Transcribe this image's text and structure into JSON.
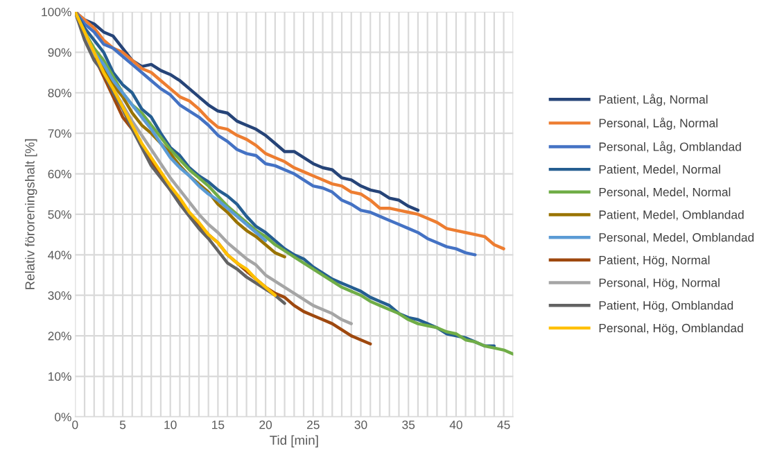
{
  "chart_data": {
    "type": "line",
    "xlabel": "Tid [min]",
    "ylabel": "Relativ föroreningshalt [%]",
    "x": [
      0,
      1,
      2,
      3,
      4,
      5,
      6,
      7,
      8,
      9,
      10,
      11,
      12,
      13,
      14,
      15,
      16,
      17,
      18,
      19,
      20,
      21,
      22,
      23,
      24,
      25,
      26,
      27,
      28,
      29,
      30,
      31,
      32,
      33,
      34,
      35,
      36,
      37,
      38,
      39,
      40,
      41,
      42,
      43,
      44,
      45,
      46
    ],
    "xlim": [
      0,
      46
    ],
    "xticks": [
      0,
      {
        "value": 1,
        "label": null
      },
      {
        "value": 2,
        "label": null
      },
      {
        "value": 3,
        "label": null
      },
      {
        "value": 4,
        "label": null
      },
      5,
      {
        "value": 6,
        "label": null
      },
      {
        "value": 7,
        "label": null
      },
      {
        "value": 8,
        "label": null
      },
      {
        "value": 9,
        "label": null
      },
      10,
      {
        "value": 11,
        "label": null
      },
      {
        "value": 12,
        "label": null
      },
      {
        "value": 13,
        "label": null
      },
      {
        "value": 14,
        "label": null
      },
      15,
      {
        "value": 16,
        "label": null
      },
      {
        "value": 17,
        "label": null
      },
      {
        "value": 18,
        "label": null
      },
      {
        "value": 19,
        "label": null
      },
      20,
      {
        "value": 21,
        "label": null
      },
      {
        "value": 22,
        "label": null
      },
      {
        "value": 23,
        "label": null
      },
      {
        "value": 24,
        "label": null
      },
      25,
      {
        "value": 26,
        "label": null
      },
      {
        "value": 27,
        "label": null
      },
      {
        "value": 28,
        "label": null
      },
      {
        "value": 29,
        "label": null
      },
      30,
      {
        "value": 31,
        "label": null
      },
      {
        "value": 32,
        "label": null
      },
      {
        "value": 33,
        "label": null
      },
      {
        "value": 34,
        "label": null
      },
      35,
      {
        "value": 36,
        "label": null
      },
      {
        "value": 37,
        "label": null
      },
      {
        "value": 38,
        "label": null
      },
      {
        "value": 39,
        "label": null
      },
      40,
      {
        "value": 41,
        "label": null
      },
      {
        "value": 42,
        "label": null
      },
      {
        "value": 43,
        "label": null
      },
      {
        "value": 44,
        "label": null
      },
      45,
      {
        "value": 46,
        "label": null
      }
    ],
    "ylim": [
      0,
      100
    ],
    "yticks": [
      {
        "value": 0,
        "label": "0%"
      },
      {
        "value": 10,
        "label": "10%"
      },
      {
        "value": 20,
        "label": "20%"
      },
      {
        "value": 30,
        "label": "30%"
      },
      {
        "value": 40,
        "label": "40%"
      },
      {
        "value": 50,
        "label": "50%"
      },
      {
        "value": 60,
        "label": "60%"
      },
      {
        "value": 70,
        "label": "70%"
      },
      {
        "value": 80,
        "label": "80%"
      },
      {
        "value": 90,
        "label": "90%"
      },
      {
        "value": 100,
        "label": "100%"
      }
    ],
    "grid": true,
    "legend": "right",
    "marker": "none",
    "line_style": "solid",
    "series": [
      {
        "name": "Patient, Låg, Normal",
        "color": "#264478",
        "values": [
          100,
          98,
          97,
          95,
          94,
          91,
          88,
          86.5,
          87,
          85.5,
          84.5,
          83,
          81,
          79,
          77,
          75.5,
          75,
          73,
          72,
          71,
          69.5,
          67.5,
          65.5,
          65.5,
          64,
          62.5,
          61.5,
          61,
          59,
          58.5,
          57,
          56,
          55.5,
          54,
          53.5,
          52,
          51,
          null,
          null,
          null,
          null,
          null,
          null,
          null,
          null,
          null,
          null
        ]
      },
      {
        "name": "Personal, Låg, Normal",
        "color": "#ed7d31",
        "values": [
          100,
          98,
          96,
          93,
          91,
          90,
          88,
          86,
          85,
          83,
          81,
          79,
          78,
          76,
          73.5,
          71.5,
          71,
          69.5,
          68.5,
          67,
          65,
          64,
          63,
          61.5,
          60.5,
          59.5,
          58.5,
          57.5,
          57,
          55.5,
          55,
          53.5,
          51.5,
          51.5,
          51,
          50.5,
          50,
          49,
          48,
          46.5,
          46,
          45.5,
          45,
          44.5,
          42.5,
          41.5,
          null
        ]
      },
      {
        "name": "Personal, Låg, Omblandad",
        "color": "#4472c4",
        "values": [
          100,
          97,
          95,
          92,
          91,
          89,
          87,
          85,
          83,
          81,
          79.5,
          77,
          75.5,
          74,
          72,
          69.5,
          68,
          66,
          65,
          64.5,
          62.5,
          62,
          61,
          60,
          58.5,
          57,
          56.5,
          55.5,
          53.5,
          52.5,
          51,
          50.5,
          49.5,
          48.5,
          47.5,
          46.5,
          45.5,
          44,
          43,
          42,
          41.5,
          40.5,
          40,
          null,
          null,
          null,
          null
        ]
      },
      {
        "name": "Patient, Medel, Normal",
        "color": "#255e91",
        "values": [
          100,
          96,
          93,
          90,
          85,
          82,
          80,
          76,
          74,
          70,
          66.5,
          64.5,
          61.5,
          59.5,
          58,
          56,
          54.5,
          52.5,
          49.5,
          47,
          45.5,
          43.5,
          41.5,
          40,
          39,
          37,
          35.5,
          34,
          33,
          32,
          31,
          29.5,
          28.5,
          27.5,
          25.5,
          24.5,
          24,
          23,
          22,
          20.5,
          20,
          19.5,
          18.5,
          17.5,
          17.5,
          null,
          null
        ]
      },
      {
        "name": "Personal, Medel, Normal",
        "color": "#70ad47",
        "values": [
          100,
          95,
          91,
          88,
          84,
          80,
          77,
          75,
          72,
          69,
          66,
          63.5,
          61,
          59,
          57,
          54.5,
          52,
          50,
          48,
          46,
          44.5,
          42.5,
          41,
          39.5,
          38,
          36.5,
          35,
          33.5,
          32,
          31,
          30,
          28.5,
          27.5,
          26.5,
          25.5,
          24,
          23,
          22.5,
          22,
          21,
          20.5,
          19,
          18.5,
          17.5,
          17,
          16.5,
          15.5
        ]
      },
      {
        "name": "Patient, Medel, Omblandad",
        "color": "#997300",
        "values": [
          100,
          95,
          90,
          86,
          82,
          79,
          75,
          72,
          70,
          67.5,
          65,
          62,
          59.5,
          57.5,
          55.5,
          52.5,
          50.5,
          48,
          46,
          44.5,
          42.5,
          40.5,
          39.5,
          null,
          null,
          null,
          null,
          null,
          null,
          null,
          null,
          null,
          null,
          null,
          null,
          null,
          null,
          null,
          null,
          null,
          null,
          null,
          null,
          null,
          null,
          null,
          null
        ]
      },
      {
        "name": "Personal, Medel, Omblandad",
        "color": "#5b9bd5",
        "values": [
          100,
          95,
          90,
          87,
          83,
          80,
          77,
          74,
          71,
          67.5,
          64,
          61.5,
          59.5,
          57,
          55,
          53.5,
          51.5,
          49.5,
          47.5,
          45.5,
          43.5,
          null,
          null,
          null,
          null,
          null,
          null,
          null,
          null,
          null,
          null,
          null,
          null,
          null,
          null,
          null,
          null,
          null,
          null,
          null,
          null,
          null,
          null,
          null,
          null,
          null,
          null
        ]
      },
      {
        "name": "Patient, Hög, Normal",
        "color": "#9e480e",
        "values": [
          100,
          94,
          89,
          84,
          79,
          74,
          71,
          67,
          63,
          60,
          56,
          53,
          50,
          47.5,
          45,
          43,
          40,
          38,
          36,
          34,
          32,
          30.5,
          29.5,
          27.5,
          26,
          25,
          24,
          23,
          21.5,
          20,
          19,
          18,
          null,
          null,
          null,
          null,
          null,
          null,
          null,
          null,
          null,
          null,
          null,
          null,
          null,
          null,
          null
        ]
      },
      {
        "name": "Personal, Hög, Normal",
        "color": "#a5a5a5",
        "values": [
          100,
          94,
          89,
          null,
          81,
          77,
          73,
          69.5,
          66,
          62.5,
          59,
          56,
          53,
          50,
          47.5,
          45.5,
          43,
          41,
          39,
          37.5,
          35,
          33.5,
          32,
          30.5,
          29,
          27.5,
          26.5,
          25.5,
          24,
          23,
          null,
          null,
          null,
          null,
          null,
          null,
          null,
          null,
          null,
          null,
          null,
          null,
          null,
          null,
          null,
          null,
          null
        ]
      },
      {
        "name": "Patient, Hög, Omblandad",
        "color": "#636363",
        "values": [
          100,
          93,
          88,
          85,
          80,
          76,
          71,
          66.5,
          62,
          59,
          56,
          52.5,
          49.5,
          46.5,
          44,
          41,
          38,
          36.5,
          34.5,
          33,
          31.5,
          30,
          28,
          null,
          null,
          null,
          null,
          null,
          null,
          null,
          null,
          null,
          null,
          null,
          null,
          null,
          null,
          null,
          null,
          null,
          null,
          null,
          null,
          null,
          null,
          null,
          null
        ]
      },
      {
        "name": "Personal, Hög, Omblandad",
        "color": "#ffc000",
        "values": [
          100,
          95,
          90,
          85,
          81,
          76.5,
          72,
          67.5,
          64,
          60.5,
          57,
          54,
          50.5,
          48,
          45,
          43,
          40,
          38,
          36.5,
          34,
          32,
          30,
          null,
          null,
          null,
          null,
          null,
          null,
          null,
          null,
          null,
          null,
          null,
          null,
          null,
          null,
          null,
          null,
          null,
          null,
          null,
          null,
          null,
          null,
          null,
          null,
          null
        ]
      }
    ]
  }
}
